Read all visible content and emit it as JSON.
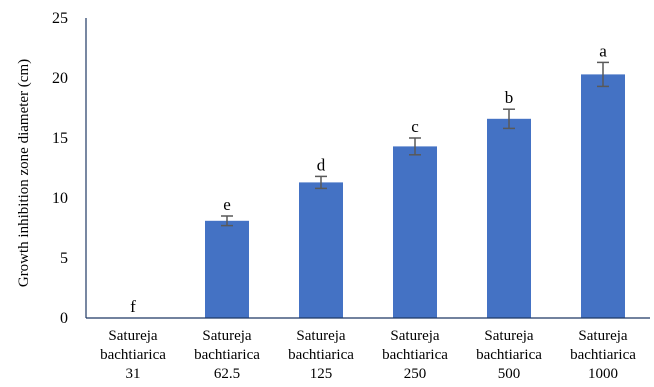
{
  "chart_data": {
    "type": "bar",
    "title": "",
    "ylabel": "Growth inhibition zone diameter (cm)",
    "xlabel": "",
    "ylim": [
      0,
      25
    ],
    "yticks": [
      0,
      5,
      10,
      15,
      20,
      25
    ],
    "grid": false,
    "legend": "none",
    "bar_color": "#4472C4",
    "categories": [
      [
        "Satureja",
        "bachtiarica",
        "31"
      ],
      [
        "Satureja",
        "bachtiarica",
        "62.5"
      ],
      [
        "Satureja",
        "bachtiarica",
        "125"
      ],
      [
        "Satureja",
        "bachtiarica",
        "250"
      ],
      [
        "Satureja",
        "bachtiarica",
        "500"
      ],
      [
        "Satureja",
        "bachtiarica",
        "1000"
      ]
    ],
    "values": [
      0,
      8.1,
      11.3,
      14.3,
      16.6,
      20.3
    ],
    "errors": [
      0,
      0.4,
      0.5,
      0.7,
      0.8,
      1.0
    ],
    "letters": [
      "f",
      "e",
      "d",
      "c",
      "b",
      "a"
    ]
  }
}
